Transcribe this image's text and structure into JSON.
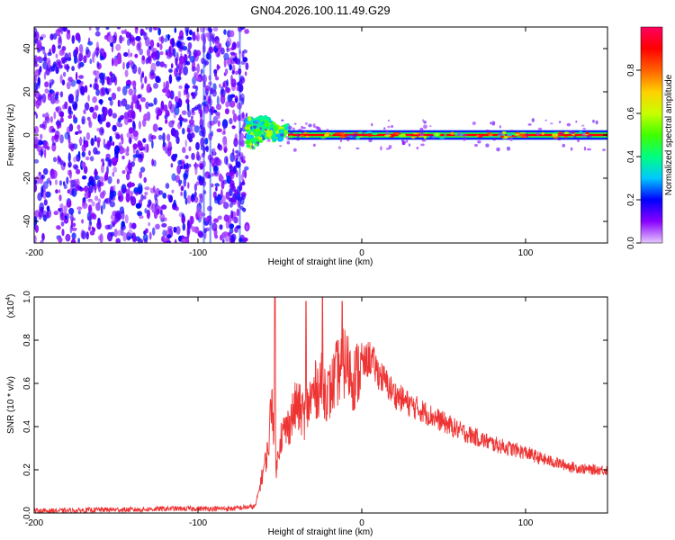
{
  "figure": {
    "title": "GN04.2026.100.11.49.G29"
  },
  "chart_data": [
    {
      "type": "heatmap",
      "xlabel": "Height of straight line (km)",
      "ylabel": "Frequency (Hz)",
      "xlim": [
        -200,
        150
      ],
      "ylim": [
        -50,
        50
      ],
      "xticks": [
        -200,
        -100,
        0,
        100
      ],
      "yticks": [
        -40,
        -20,
        0,
        20,
        40
      ],
      "colorbar": {
        "label": "Normalized spectral amplitude",
        "range": [
          0.0,
          1.0
        ],
        "ticks": [
          0.0,
          0.2,
          0.4,
          0.6,
          0.8
        ],
        "tick_labels": [
          "0.0",
          "0.2",
          "0.4",
          "0.6",
          "0.8"
        ],
        "colormap": [
          "#e6c8ff",
          "#8800ff",
          "#0000ff",
          "#00c8ff",
          "#00ff80",
          "#40ff00",
          "#c8ff00",
          "#ffd000",
          "#ff6000",
          "#ff0000",
          "#ff0060"
        ]
      },
      "regions": [
        {
          "x": [
            -200,
            -70
          ],
          "y": [
            -50,
            50
          ],
          "description": "noise",
          "value": 0.15
        },
        {
          "x": [
            -70,
            -45
          ],
          "y": [
            -6,
            8
          ],
          "description": "onset",
          "value": 0.45
        },
        {
          "x": [
            -45,
            150
          ],
          "y": [
            -2,
            2
          ],
          "description": "carrier line",
          "value": 0.9
        }
      ],
      "grid": false
    },
    {
      "type": "line",
      "xlabel": "Height of straight line (km)",
      "ylabel": "SNR (10 * v/v)",
      "multiplier_label": "(x10",
      "multiplier_exponent": "4",
      "multiplier_close": ")",
      "xlim": [
        -200,
        150
      ],
      "ylim": [
        0.0,
        1.0
      ],
      "xticks": [
        -200,
        -100,
        0,
        100
      ],
      "yticks": [
        0.0,
        0.2,
        0.4,
        0.6,
        0.8,
        1.0
      ],
      "ytick_labels": [
        "0.0",
        "0.2",
        "0.4",
        "0.6",
        "0.8",
        "1.0"
      ],
      "series": [
        {
          "color": "#ee3333",
          "x": [
            -200,
            -180,
            -160,
            -140,
            -120,
            -100,
            -80,
            -65,
            -60,
            -57,
            -55,
            -52,
            -50,
            -45,
            -40,
            -35,
            -30,
            -25,
            -20,
            -15,
            -10,
            -5,
            0,
            5,
            10,
            15,
            20,
            30,
            40,
            50,
            60,
            70,
            80,
            90,
            100,
            110,
            120,
            130,
            140,
            150
          ],
          "y": [
            0.01,
            0.01,
            0.015,
            0.015,
            0.02,
            0.02,
            0.02,
            0.03,
            0.2,
            0.3,
            0.55,
            0.2,
            0.35,
            0.4,
            0.5,
            0.45,
            0.55,
            0.6,
            0.55,
            0.65,
            0.7,
            0.62,
            0.68,
            0.72,
            0.65,
            0.6,
            0.55,
            0.5,
            0.46,
            0.42,
            0.38,
            0.35,
            0.32,
            0.3,
            0.28,
            0.25,
            0.23,
            0.21,
            0.2,
            0.2
          ],
          "peaks": [
            {
              "x": -53,
              "y": 1.0
            },
            {
              "x": -34,
              "y": 0.98
            },
            {
              "x": -24,
              "y": 1.0
            },
            {
              "x": -12,
              "y": 0.98
            }
          ]
        }
      ],
      "grid": false
    }
  ]
}
